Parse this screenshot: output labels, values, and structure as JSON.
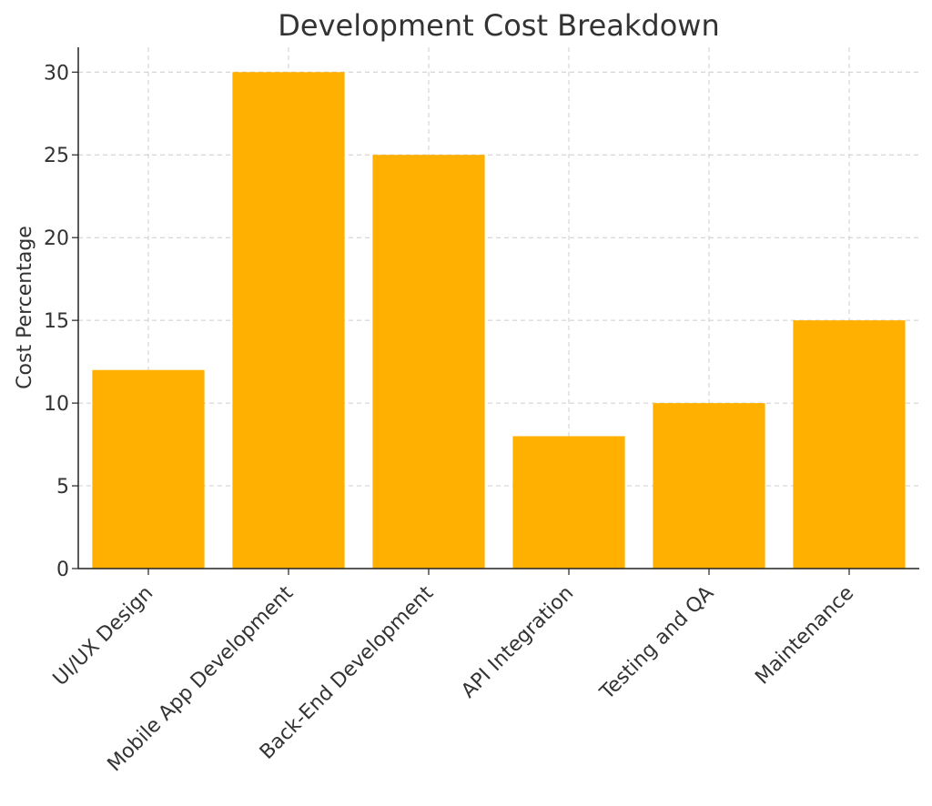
{
  "chart_data": {
    "type": "bar",
    "title": "Development Cost Breakdown",
    "xlabel": "",
    "ylabel": "Cost Percentage",
    "categories": [
      "UI/UX Design",
      "Mobile App Development",
      "Back-End Development",
      "API Integration",
      "Testing and QA",
      "Maintenance"
    ],
    "values": [
      12,
      30,
      25,
      8,
      10,
      15
    ],
    "ylim": [
      0,
      31.5
    ],
    "yticks": [
      0,
      5,
      10,
      15,
      20,
      25,
      30
    ],
    "grid": true,
    "bar_color": "#FFB000"
  }
}
